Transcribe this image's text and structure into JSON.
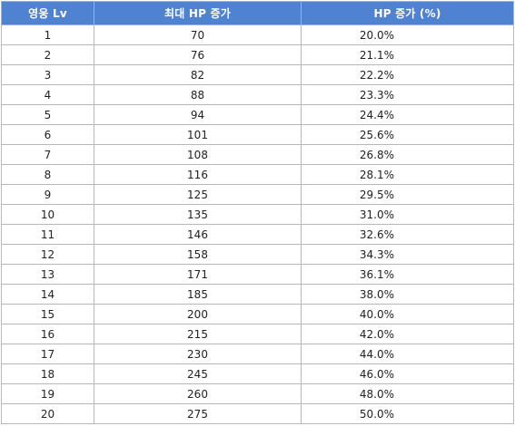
{
  "table": {
    "headers": [
      "영웅 Lv",
      "최대 HP 증가",
      "HP 증가 (%)"
    ],
    "rows": [
      {
        "lv": "1",
        "max_hp": "70",
        "hp_pct": "20.0%"
      },
      {
        "lv": "2",
        "max_hp": "76",
        "hp_pct": "21.1%"
      },
      {
        "lv": "3",
        "max_hp": "82",
        "hp_pct": "22.2%"
      },
      {
        "lv": "4",
        "max_hp": "88",
        "hp_pct": "23.3%"
      },
      {
        "lv": "5",
        "max_hp": "94",
        "hp_pct": "24.4%"
      },
      {
        "lv": "6",
        "max_hp": "101",
        "hp_pct": "25.6%"
      },
      {
        "lv": "7",
        "max_hp": "108",
        "hp_pct": "26.8%"
      },
      {
        "lv": "8",
        "max_hp": "116",
        "hp_pct": "28.1%"
      },
      {
        "lv": "9",
        "max_hp": "125",
        "hp_pct": "29.5%"
      },
      {
        "lv": "10",
        "max_hp": "135",
        "hp_pct": "31.0%"
      },
      {
        "lv": "11",
        "max_hp": "146",
        "hp_pct": "32.6%"
      },
      {
        "lv": "12",
        "max_hp": "158",
        "hp_pct": "34.3%"
      },
      {
        "lv": "13",
        "max_hp": "171",
        "hp_pct": "36.1%"
      },
      {
        "lv": "14",
        "max_hp": "185",
        "hp_pct": "38.0%"
      },
      {
        "lv": "15",
        "max_hp": "200",
        "hp_pct": "40.0%"
      },
      {
        "lv": "16",
        "max_hp": "215",
        "hp_pct": "42.0%"
      },
      {
        "lv": "17",
        "max_hp": "230",
        "hp_pct": "44.0%"
      },
      {
        "lv": "18",
        "max_hp": "245",
        "hp_pct": "46.0%"
      },
      {
        "lv": "19",
        "max_hp": "260",
        "hp_pct": "48.0%"
      },
      {
        "lv": "20",
        "max_hp": "275",
        "hp_pct": "50.0%"
      }
    ]
  },
  "colors": {
    "header_bg": "#4f82d0",
    "header_text": "#ffffff",
    "cell_border": "#b8b8b8"
  }
}
